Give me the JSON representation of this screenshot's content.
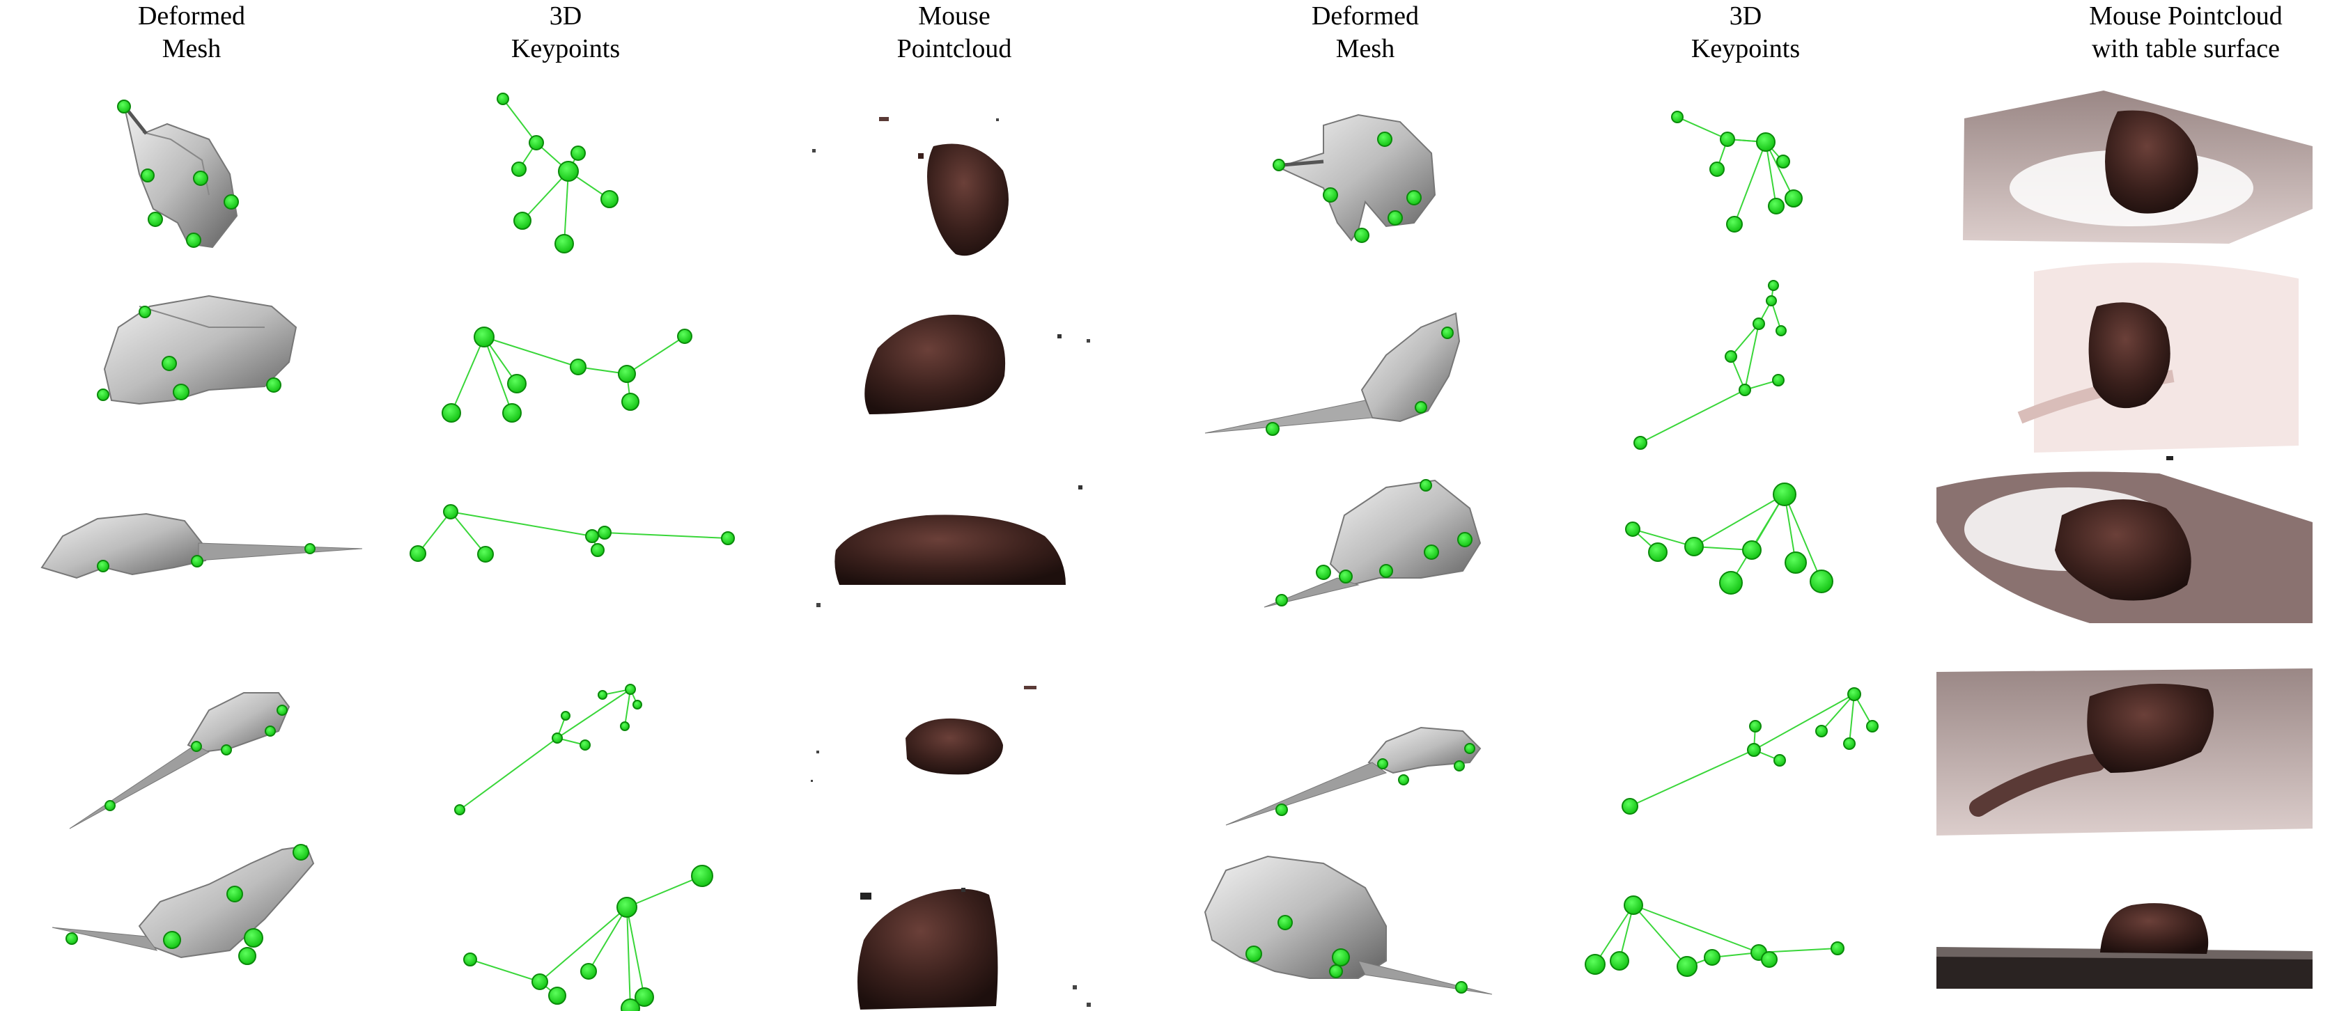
{
  "headers": [
    {
      "line1": "Deformed",
      "line2": "Mesh"
    },
    {
      "line1": "3D",
      "line2": "Keypoints"
    },
    {
      "line1": "Mouse",
      "line2": "Pointcloud"
    },
    {
      "line1": "Deformed",
      "line2": "Mesh"
    },
    {
      "line1": "3D",
      "line2": "Keypoints"
    },
    {
      "line1": "Mouse Pointcloud",
      "line2": "with table surface"
    }
  ],
  "colors": {
    "keypoint": "#22e622",
    "keypoint_edge": "#0a8a0a",
    "keypoint_line": "#39d639",
    "mesh_light": "#d9d9d9",
    "mesh_dark": "#6f6f6f",
    "mouse_fur": "#3a201c",
    "table_surface": "#b8a3a0"
  },
  "panels": {
    "mesh_icon": "mouse-mesh",
    "keypoints_icon": "keypoint-skeleton",
    "pointcloud_icon": "mouse-pointcloud",
    "table_icon": "pointcloud-with-table"
  }
}
